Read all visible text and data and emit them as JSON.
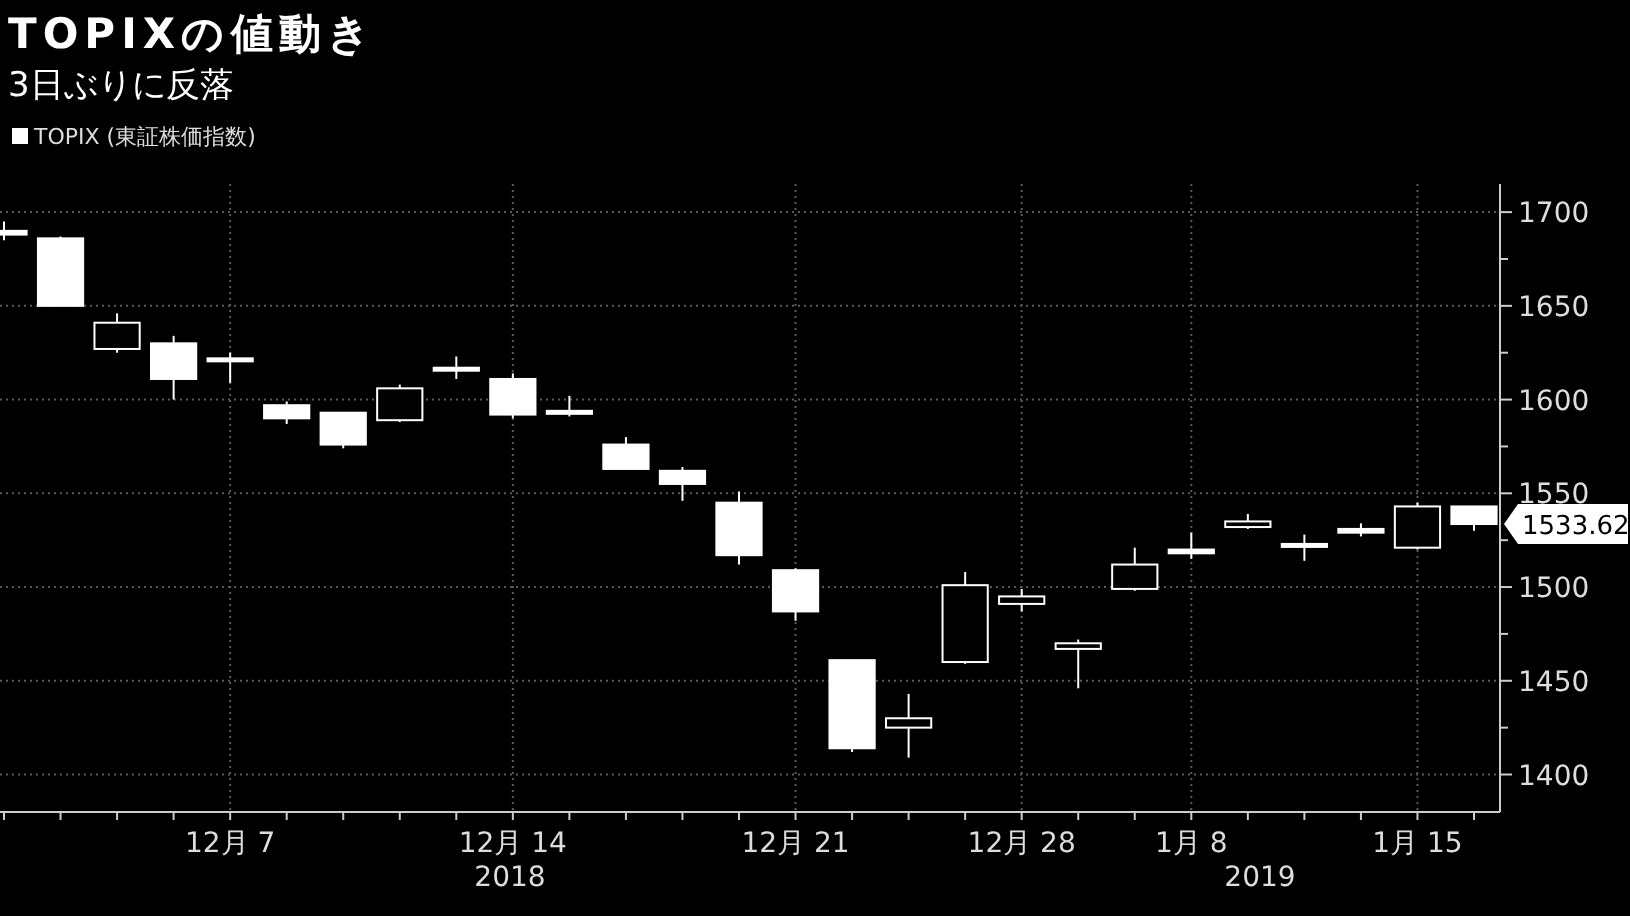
{
  "chart_data": {
    "type": "candlestick",
    "title": "TOPIXの値動き",
    "subtitle": "3日ぶりに反落",
    "categories": [
      null,
      null,
      null,
      null,
      "12月 7",
      null,
      null,
      null,
      null,
      "12月 14",
      null,
      null,
      null,
      null,
      "12月 21",
      null,
      null,
      null,
      "12月 28",
      null,
      null,
      "1月 8",
      null,
      null,
      null,
      "1月 15",
      null
    ],
    "series": [
      {
        "name": "TOPIX (東証株価指数)",
        "color": "#ffffff",
        "ohlc": [
          [
            1690,
            1695,
            1685,
            1688
          ],
          [
            1686,
            1687,
            1650,
            1650
          ],
          [
            1627,
            1646,
            1625,
            1641
          ],
          [
            1630,
            1634,
            1600,
            1611
          ],
          [
            1622,
            1625,
            1609,
            1621
          ],
          [
            1597,
            1599,
            1587,
            1590
          ],
          [
            1593,
            1593,
            1574,
            1576
          ],
          [
            1589,
            1608,
            1588,
            1606
          ],
          [
            1617,
            1623,
            1611,
            1616
          ],
          [
            1611,
            1614,
            1590,
            1592
          ],
          [
            1594,
            1602,
            1591,
            1593
          ],
          [
            1576,
            1580,
            1563,
            1563
          ],
          [
            1562,
            1564,
            1546,
            1555
          ],
          [
            1545,
            1551,
            1512,
            1517
          ],
          [
            1509,
            1510,
            1482,
            1487
          ],
          [
            1461,
            1461,
            1412,
            1414
          ],
          [
            1425,
            1443,
            1409,
            1430
          ],
          [
            1460,
            1508,
            1459,
            1501
          ],
          [
            1491,
            1499,
            1487,
            1495
          ],
          [
            1467,
            1472,
            1446,
            1470
          ],
          [
            1499,
            1521,
            1498,
            1512
          ],
          [
            1520,
            1529,
            1515,
            1518
          ],
          [
            1532,
            1539,
            1531,
            1535
          ],
          [
            1523,
            1528,
            1514,
            1522
          ],
          [
            1531,
            1534,
            1527,
            1529
          ],
          [
            1521,
            1545,
            1520,
            1543
          ],
          [
            1543,
            1543,
            1530,
            1533.62
          ]
        ],
        "colors": [
          "#ffffff",
          "#ffffff",
          "#000000",
          "#ffffff",
          "#ffffff",
          "#ffffff",
          "#ffffff",
          "#000000",
          "#ffffff",
          "#ffffff",
          "#ffffff",
          "#ffffff",
          "#ffffff",
          "#ffffff",
          "#ffffff",
          "#ffffff",
          "#000000",
          "#000000",
          "#000000",
          "#000000",
          "#000000",
          "#ffffff",
          "#000000",
          "#ffffff",
          "#ffffff",
          "#000000",
          "#ffffff"
        ]
      }
    ],
    "ylim": [
      1380,
      1715
    ],
    "yticks": [
      1400,
      {
        "value": 1425,
        "label": null
      },
      1450,
      {
        "value": 1475,
        "label": null
      },
      1500,
      {
        "value": 1525,
        "label": null
      },
      1550,
      {
        "value": 1575,
        "label": null
      },
      1600,
      {
        "value": 1625,
        "label": null
      },
      1650,
      {
        "value": 1675,
        "label": null
      },
      1700
    ],
    "grid": true,
    "legend": "top left",
    "annotations": [
      "2018",
      "2019",
      "1533.62"
    ]
  }
}
